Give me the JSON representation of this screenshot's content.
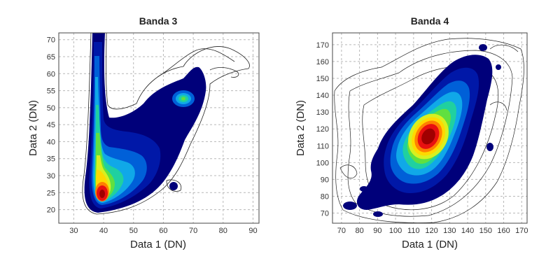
{
  "chart_data": [
    {
      "type": "heatmap",
      "title": "Banda 3",
      "xlabel": "Data 1 (DN)",
      "ylabel": "Data 2 (DN)",
      "xlim": [
        25,
        92
      ],
      "ylim": [
        16,
        72
      ],
      "xticks": [
        30,
        40,
        50,
        60,
        70,
        80,
        90
      ],
      "yticks": [
        20,
        25,
        30,
        35,
        40,
        45,
        50,
        55,
        60,
        65,
        70
      ],
      "grid": true,
      "peaks": [
        {
          "x": 36,
          "y": 24,
          "level": "max"
        },
        {
          "x": 60,
          "y": 52,
          "level": "medium"
        }
      ]
    },
    {
      "type": "heatmap",
      "title": "Banda 4",
      "xlabel": "Data 1 (DN)",
      "ylabel": "Data 2 (DN)",
      "xlim": [
        65,
        173
      ],
      "ylim": [
        64,
        177
      ],
      "xticks": [
        70,
        80,
        90,
        100,
        110,
        120,
        130,
        140,
        150,
        160,
        170
      ],
      "yticks": [
        70,
        80,
        90,
        100,
        110,
        120,
        130,
        140,
        150,
        160,
        170
      ],
      "grid": true,
      "peaks": [
        {
          "x": 117,
          "y": 123,
          "level": "max"
        }
      ]
    }
  ],
  "colors": {
    "level1": "#00007a",
    "level2": "#0018a8",
    "level3": "#0060d8",
    "level4": "#10a8e8",
    "level5": "#20d0a0",
    "level6": "#60e040",
    "level7": "#d8f020",
    "level8": "#ffd800",
    "level9": "#ff8000",
    "level10": "#e81010",
    "level11": "#a00000",
    "contour": "#222222",
    "grid": "#b8b8b8"
  }
}
